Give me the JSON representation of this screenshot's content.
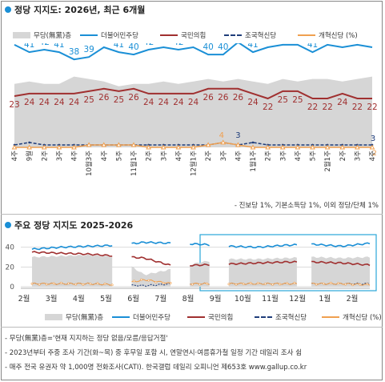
{
  "chart_data": [
    {
      "type": "line",
      "title": "정당 지지도: 2026년, 최근 6개월",
      "x": [
        "8월 4주",
        "9월 1주",
        "2주",
        "3주",
        "4주",
        "10월 3주",
        "4주",
        "5주",
        "11월 1주",
        "2주",
        "3주",
        "4주",
        "12월 1주",
        "2주",
        "3주",
        "4주",
        "1월 1주",
        "2주",
        "3주",
        "4주",
        "5주",
        "2월 1주",
        "2주",
        "3주",
        "4주"
      ],
      "x_display": [
        "4주",
        "9월",
        "2주",
        "3주",
        "4주",
        "10월3주",
        "4주",
        "5주",
        "11월1주",
        "2주",
        "3주",
        "4주",
        "12월1주",
        "2주",
        "3주",
        "4주",
        "1월1주",
        "2주",
        "3주",
        "4주",
        "5주",
        "2월1주",
        "2주",
        "3주",
        "4주"
      ],
      "series": [
        {
          "name": "무당(無黨)층",
          "values": [
            28,
            29,
            28,
            28,
            31,
            30,
            29,
            27,
            28,
            28,
            29,
            28,
            29,
            30,
            29,
            30,
            29,
            28,
            30,
            29,
            30,
            30,
            29,
            30,
            31
          ]
        },
        {
          "name": "더불어민주당",
          "values": [
            44,
            41,
            42,
            41,
            38,
            39,
            43,
            41,
            40,
            42,
            43,
            42,
            43,
            40,
            40,
            45,
            41,
            43,
            44,
            44,
            41,
            44,
            43,
            44,
            43
          ]
        },
        {
          "name": "국민의힘",
          "values": [
            23,
            24,
            24,
            24,
            24,
            25,
            26,
            25,
            26,
            24,
            24,
            24,
            24,
            26,
            26,
            26,
            24,
            22,
            25,
            25,
            22,
            22,
            24,
            22,
            22
          ]
        },
        {
          "name": "조국혁신당",
          "values": [
            3,
            4,
            3,
            3,
            3,
            3,
            3,
            3,
            3,
            3,
            3,
            3,
            3,
            3,
            4,
            3,
            4,
            3,
            3,
            3,
            3,
            3,
            3,
            3,
            3
          ]
        },
        {
          "name": "개혁신당 (%)",
          "values": [
            2,
            2,
            2,
            2,
            2,
            3,
            3,
            3,
            3,
            2,
            2,
            2,
            2,
            3,
            4,
            3,
            2,
            2,
            2,
            2,
            2,
            2,
            2,
            2,
            2
          ]
        }
      ],
      "note": "- 진보당 1%, 기본소득당 1%, 이외 정당/단체 1%"
    },
    {
      "type": "line",
      "title": "주요 정당 지지도 2025-2026",
      "categories": [
        "2월",
        "3월",
        "4월",
        "5월",
        "6월",
        "7월",
        "8월",
        "9월",
        "10월",
        "11월",
        "12월",
        "1월",
        "2월"
      ],
      "yticks": [
        "40",
        "20",
        "0"
      ],
      "ylim": [
        0,
        50
      ],
      "series": [
        {
          "name": "무당(無黨)층",
          "values": [
            30,
            31,
            32,
            30,
            12,
            18,
            25,
            28,
            28,
            29,
            30,
            29,
            30
          ]
        },
        {
          "name": "더불어민주당",
          "values": [
            38,
            40,
            41,
            42,
            45,
            44,
            43,
            41,
            40,
            42,
            43,
            41,
            44
          ]
        },
        {
          "name": "국민의힘",
          "values": [
            35,
            34,
            33,
            31,
            29,
            21,
            22,
            23,
            24,
            25,
            25,
            24,
            22
          ]
        },
        {
          "name": "조국혁신당",
          "values": [
            3,
            3,
            3,
            2,
            1,
            3,
            3,
            3,
            3,
            3,
            3,
            3,
            3
          ]
        },
        {
          "name": "개혁신당 (%)",
          "values": [
            3,
            3,
            3,
            2,
            7,
            3,
            3,
            3,
            3,
            3,
            3,
            3,
            2
          ]
        }
      ]
    }
  ],
  "colors": {
    "undecided": "#d6d6d6",
    "democratic": "#1a8fd6",
    "ppp": "#a03030",
    "rebuilding": "#1f3d7a",
    "reform": "#f0a050",
    "accent": "#1a8fd6"
  },
  "legend": {
    "undecided": "무당(無黨)층",
    "democratic": "더불어민주당",
    "ppp": "국민의힘",
    "rebuilding": "조국혁신당",
    "reform": "개혁신당 (%)"
  },
  "footnotes": [
    "- 무당(無黨)층='현재 지지하는 정당 없음/모름/응답거절'",
    "- 2023년부터 주중 조사 기간(화~목) 중 후무일 포함 시, 연말연시·여름휴가철 일정 기간 데일리 조사 쉼",
    "- 매주 전국 유권자 약 1,000명 전화조사(CATI). 한국갤럽 데일리 오피니언 제653호 www.gallup.co.kr"
  ]
}
